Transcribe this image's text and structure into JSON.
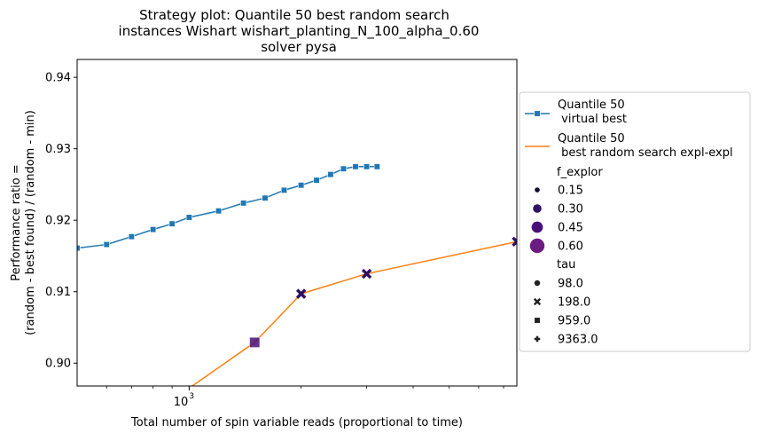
{
  "chart_data": {
    "type": "line",
    "title": [
      "Strategy plot: Quantile 50 best random search",
      "instances Wishart wishart_planting_N_100_alpha_0.60",
      "solver pysa"
    ],
    "xlabel": "Total number of spin variable reads (proportional to time)",
    "ylabel": [
      "Performance ratio =",
      "(random - best found) / (random - min)"
    ],
    "xscale": "log",
    "xlim": [
      500,
      7600
    ],
    "ylim": [
      0.8968,
      0.9425
    ],
    "yticks": [
      0.9,
      0.91,
      0.92,
      0.93,
      0.94
    ],
    "ytick_labels": [
      "0.90",
      "0.91",
      "0.92",
      "0.93",
      "0.94"
    ],
    "xtick_major": [
      1000
    ],
    "xtick_major_labels": [
      "10",
      "3"
    ],
    "xtick_minor": [
      600,
      700,
      800,
      900,
      2000,
      3000,
      4000,
      5000,
      6000,
      7000
    ],
    "series": [
      {
        "name": "Quantile 50\n virtual best",
        "color": "#1f77b4",
        "marker": "square",
        "x": [
          500,
          600,
          700,
          800,
          900,
          1000,
          1200,
          1400,
          1600,
          1800,
          2000,
          2200,
          2400,
          2600,
          2800,
          3000,
          3200
        ],
        "y": [
          0.9161,
          0.9166,
          0.9177,
          0.9187,
          0.9195,
          0.9204,
          0.9213,
          0.9224,
          0.9231,
          0.9242,
          0.9249,
          0.9256,
          0.9264,
          0.9272,
          0.9275,
          0.9275,
          0.9275
        ]
      },
      {
        "name": "Quantile 50\n best random search expl-expl",
        "color": "#ff7f0e",
        "x": [
          1000,
          1500,
          2000,
          3000,
          7600
        ],
        "y": [
          0.8965,
          0.9029,
          0.9097,
          0.9125,
          0.917
        ]
      }
    ],
    "scatter_points": [
      {
        "x": 1000,
        "y": 0.8965,
        "f_explor": 0.15,
        "tau": "98.0"
      },
      {
        "x": 1500,
        "y": 0.9029,
        "f_explor": 0.45,
        "tau": "959.0"
      },
      {
        "x": 2000,
        "y": 0.9097,
        "f_explor": 0.3,
        "tau": "198.0"
      },
      {
        "x": 3000,
        "y": 0.9125,
        "f_explor": 0.3,
        "tau": "198.0"
      },
      {
        "x": 7600,
        "y": 0.917,
        "f_explor": 0.3,
        "tau": "198.0"
      }
    ],
    "legend": {
      "placement": "outside-right",
      "lines": [
        {
          "label1": "Quantile 50",
          "label2": " virtual best",
          "color": "#1f77b4",
          "marker": "square"
        },
        {
          "label1": "Quantile 50",
          "label2": " best random search expl-expl",
          "color": "#ff7f0e",
          "marker": "none"
        }
      ],
      "size_title": "f_explor",
      "sizes": [
        {
          "label": "0.15",
          "color": "#0d0a2c"
        },
        {
          "label": "0.30",
          "color": "#2f1163"
        },
        {
          "label": "0.45",
          "color": "#4a1079"
        },
        {
          "label": "0.60",
          "color": "#6a1c80"
        }
      ],
      "style_title": "tau",
      "styles": [
        {
          "label": "98.0",
          "marker": "circle"
        },
        {
          "label": "198.0",
          "marker": "x"
        },
        {
          "label": "959.0",
          "marker": "square"
        },
        {
          "label": "9363.0",
          "marker": "plus"
        }
      ]
    }
  }
}
